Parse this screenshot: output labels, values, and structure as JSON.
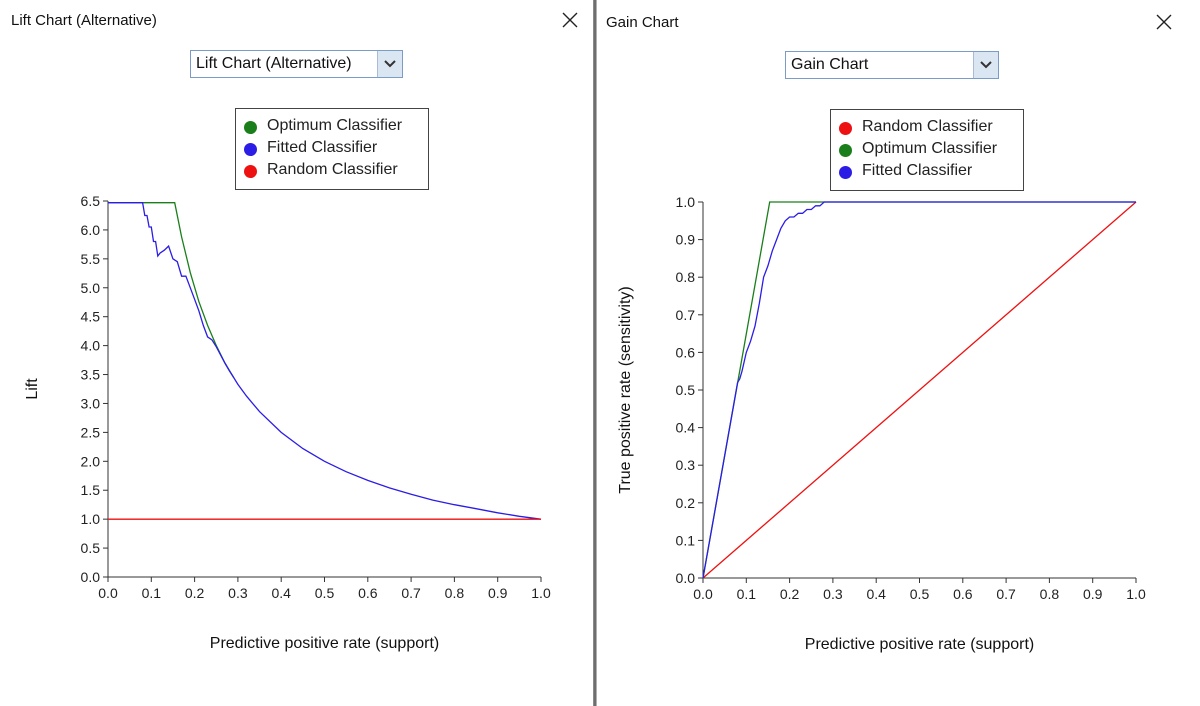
{
  "lift_panel": {
    "title": "Lift Chart (Alternative)",
    "dropdown_value": "Lift Chart (Alternative)",
    "legend": [
      {
        "name": "Optimum Classifier",
        "color": "#1a7f1a"
      },
      {
        "name": "Fitted Classifier",
        "color": "#2b1de6"
      },
      {
        "name": "Random Classifier",
        "color": "#ee1111"
      }
    ]
  },
  "gain_panel": {
    "title": "Gain Chart",
    "dropdown_value": "Gain Chart",
    "legend": [
      {
        "name": "Random Classifier",
        "color": "#ee1111"
      },
      {
        "name": "Optimum Classifier",
        "color": "#1a7f1a"
      },
      {
        "name": "Fitted Classifier",
        "color": "#2b1de6"
      }
    ]
  },
  "chart_data": [
    {
      "type": "line",
      "xlabel": "Predictive positive rate (support)",
      "ylabel": "Lift",
      "xlim": [
        0,
        1
      ],
      "ylim": [
        0,
        6.5
      ],
      "xticks": [
        "0.0",
        "0.1",
        "0.2",
        "0.3",
        "0.4",
        "0.5",
        "0.6",
        "0.7",
        "0.8",
        "0.9",
        "1.0"
      ],
      "yticks": [
        "0.0",
        "0.5",
        "1.0",
        "1.5",
        "2.0",
        "2.5",
        "3.0",
        "3.5",
        "4.0",
        "4.5",
        "5.0",
        "5.5",
        "6.0",
        "6.5"
      ],
      "series": [
        {
          "name": "Optimum Classifier",
          "color": "#1a7f1a",
          "x": [
            0.0,
            0.154,
            0.17,
            0.19,
            0.21,
            0.23,
            0.25,
            0.27,
            0.29
          ],
          "y": [
            6.47,
            6.47,
            5.88,
            5.26,
            4.76,
            4.35,
            4.0,
            3.7,
            3.45
          ]
        },
        {
          "name": "Fitted Classifier",
          "color": "#2b1de6",
          "x": [
            0.0,
            0.08,
            0.085,
            0.09,
            0.095,
            0.1,
            0.105,
            0.11,
            0.115,
            0.12,
            0.13,
            0.14,
            0.15,
            0.16,
            0.17,
            0.18,
            0.19,
            0.2,
            0.21,
            0.22,
            0.23,
            0.24,
            0.25,
            0.26,
            0.27,
            0.28,
            0.29,
            0.3,
            0.32,
            0.35,
            0.4,
            0.45,
            0.5,
            0.55,
            0.6,
            0.65,
            0.7,
            0.75,
            0.8,
            0.85,
            0.9,
            0.95,
            1.0
          ],
          "y": [
            6.47,
            6.47,
            6.25,
            6.25,
            6.05,
            6.05,
            5.8,
            5.8,
            5.55,
            5.6,
            5.65,
            5.72,
            5.5,
            5.45,
            5.2,
            5.2,
            5.0,
            4.8,
            4.6,
            4.35,
            4.15,
            4.1,
            3.98,
            3.84,
            3.7,
            3.57,
            3.45,
            3.33,
            3.125,
            2.86,
            2.5,
            2.22,
            2.0,
            1.82,
            1.67,
            1.54,
            1.43,
            1.33,
            1.25,
            1.18,
            1.11,
            1.05,
            1.0
          ]
        },
        {
          "name": "Random Classifier",
          "color": "#ee1111",
          "x": [
            0.0,
            1.0
          ],
          "y": [
            1.0,
            1.0
          ]
        }
      ]
    },
    {
      "type": "line",
      "xlabel": "Predictive positive rate (support)",
      "ylabel": "True positive rate (sensitivity)",
      "xlim": [
        0,
        1
      ],
      "ylim": [
        0,
        1
      ],
      "xticks": [
        "0.0",
        "0.1",
        "0.2",
        "0.3",
        "0.4",
        "0.5",
        "0.6",
        "0.7",
        "0.8",
        "0.9",
        "1.0"
      ],
      "yticks": [
        "0.0",
        "0.1",
        "0.2",
        "0.3",
        "0.4",
        "0.5",
        "0.6",
        "0.7",
        "0.8",
        "0.9",
        "1.0"
      ],
      "series": [
        {
          "name": "Random Classifier",
          "color": "#ee1111",
          "x": [
            0.0,
            1.0
          ],
          "y": [
            0.0,
            1.0
          ]
        },
        {
          "name": "Optimum Classifier",
          "color": "#1a7f1a",
          "x": [
            0.0,
            0.154,
            0.29,
            1.0
          ],
          "y": [
            0.0,
            1.0,
            1.0,
            1.0
          ]
        },
        {
          "name": "Fitted Classifier",
          "color": "#2b1de6",
          "x": [
            0.0,
            0.08,
            0.085,
            0.09,
            0.1,
            0.11,
            0.12,
            0.13,
            0.14,
            0.15,
            0.16,
            0.17,
            0.18,
            0.19,
            0.2,
            0.21,
            0.22,
            0.23,
            0.24,
            0.25,
            0.26,
            0.27,
            0.28,
            0.29,
            0.3,
            1.0
          ],
          "y": [
            0.0,
            0.52,
            0.53,
            0.55,
            0.6,
            0.63,
            0.67,
            0.73,
            0.8,
            0.83,
            0.87,
            0.9,
            0.93,
            0.95,
            0.96,
            0.96,
            0.97,
            0.97,
            0.98,
            0.98,
            0.99,
            0.99,
            1.0,
            1.0,
            1.0,
            1.0
          ]
        }
      ]
    }
  ]
}
